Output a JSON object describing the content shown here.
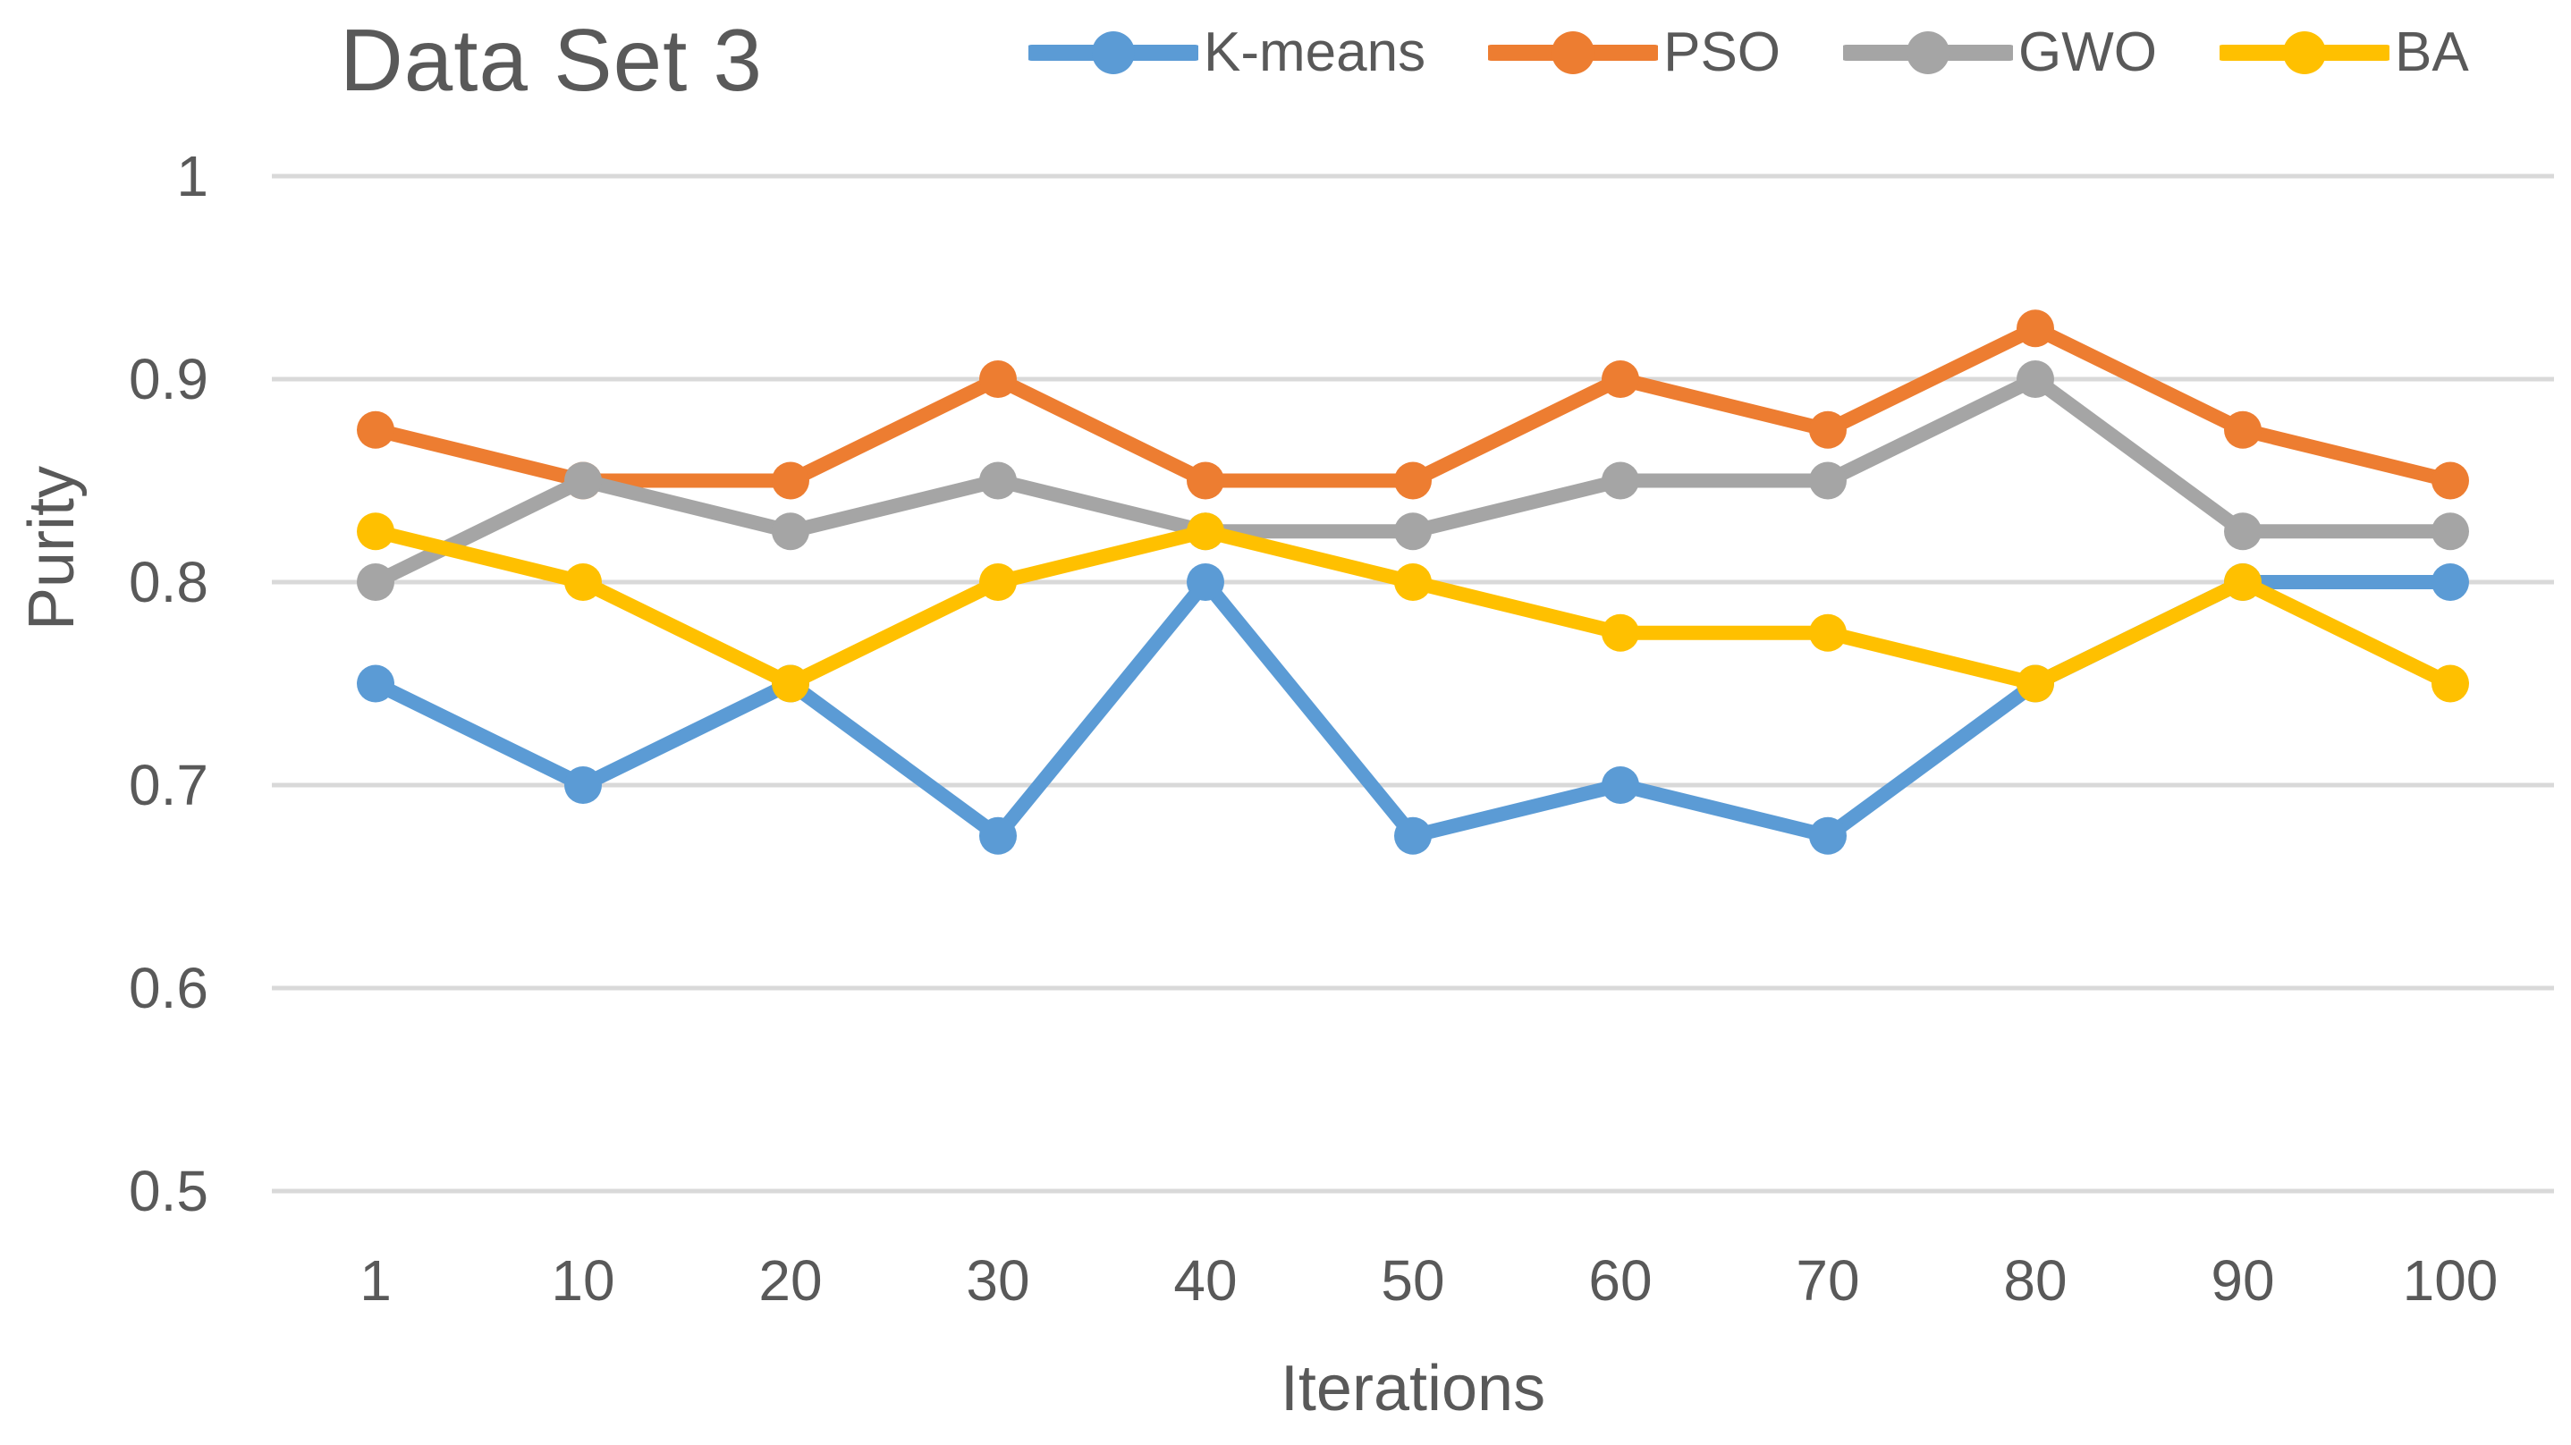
{
  "chart_data": {
    "type": "line",
    "title": "Data Set 3",
    "xlabel": "Iterations",
    "ylabel": "Purity",
    "categories": [
      "1",
      "10",
      "20",
      "30",
      "40",
      "50",
      "60",
      "70",
      "80",
      "90",
      "100"
    ],
    "ylim": [
      0.5,
      1.0
    ],
    "ytick_values": [
      1.0,
      0.9,
      0.8,
      0.7,
      0.6,
      0.5
    ],
    "ytick_labels": [
      "1",
      "0.9",
      "0.8",
      "0.7",
      "0.6",
      "0.5"
    ],
    "grid": "horizontal",
    "legend_position": "top",
    "series": [
      {
        "name": "K-means",
        "color": "#5B9BD5",
        "values": [
          0.75,
          0.7,
          0.75,
          0.675,
          0.8,
          0.675,
          0.7,
          0.675,
          0.75,
          0.8,
          0.8
        ]
      },
      {
        "name": "PSO",
        "color": "#ED7D31",
        "values": [
          0.875,
          0.85,
          0.85,
          0.9,
          0.85,
          0.85,
          0.9,
          0.875,
          0.925,
          0.875,
          0.85
        ]
      },
      {
        "name": "GWO",
        "color": "#A5A5A5",
        "values": [
          0.8,
          0.85,
          0.825,
          0.85,
          0.825,
          0.825,
          0.85,
          0.85,
          0.9,
          0.825,
          0.825
        ]
      },
      {
        "name": "BA",
        "color": "#FFC000",
        "values": [
          0.825,
          0.8,
          0.75,
          0.8,
          0.825,
          0.8,
          0.775,
          0.775,
          0.75,
          0.8,
          0.75
        ]
      }
    ],
    "colors": {
      "gridline": "#D9D9D9",
      "text": "#595959",
      "background": "#FFFFFF"
    }
  }
}
